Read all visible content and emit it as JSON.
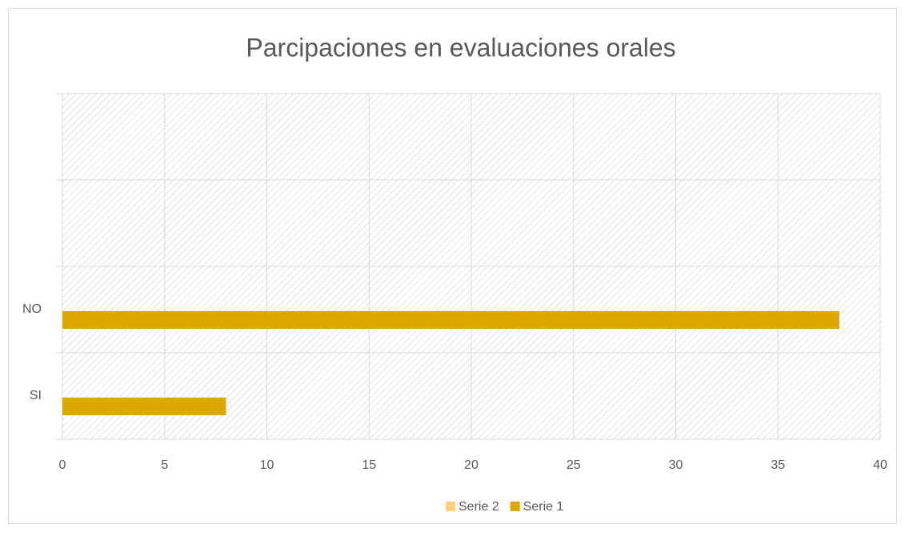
{
  "chart_data": {
    "type": "bar",
    "orientation": "horizontal",
    "title": "Parcipaciones en evaluaciones orales",
    "categories": [
      "SI",
      "NO",
      null,
      null
    ],
    "series": [
      {
        "name": "Serie 2",
        "color": "#fdd17d",
        "values": [
          null,
          null,
          null,
          null
        ]
      },
      {
        "name": "Serie 1",
        "color": "#dfa800",
        "values": [
          8,
          38,
          null,
          null
        ]
      }
    ],
    "xlim": [
      0,
      40
    ],
    "xticks": [
      0,
      5,
      10,
      15,
      20,
      25,
      30,
      35,
      40
    ],
    "grid": true,
    "legend": "bottom"
  }
}
